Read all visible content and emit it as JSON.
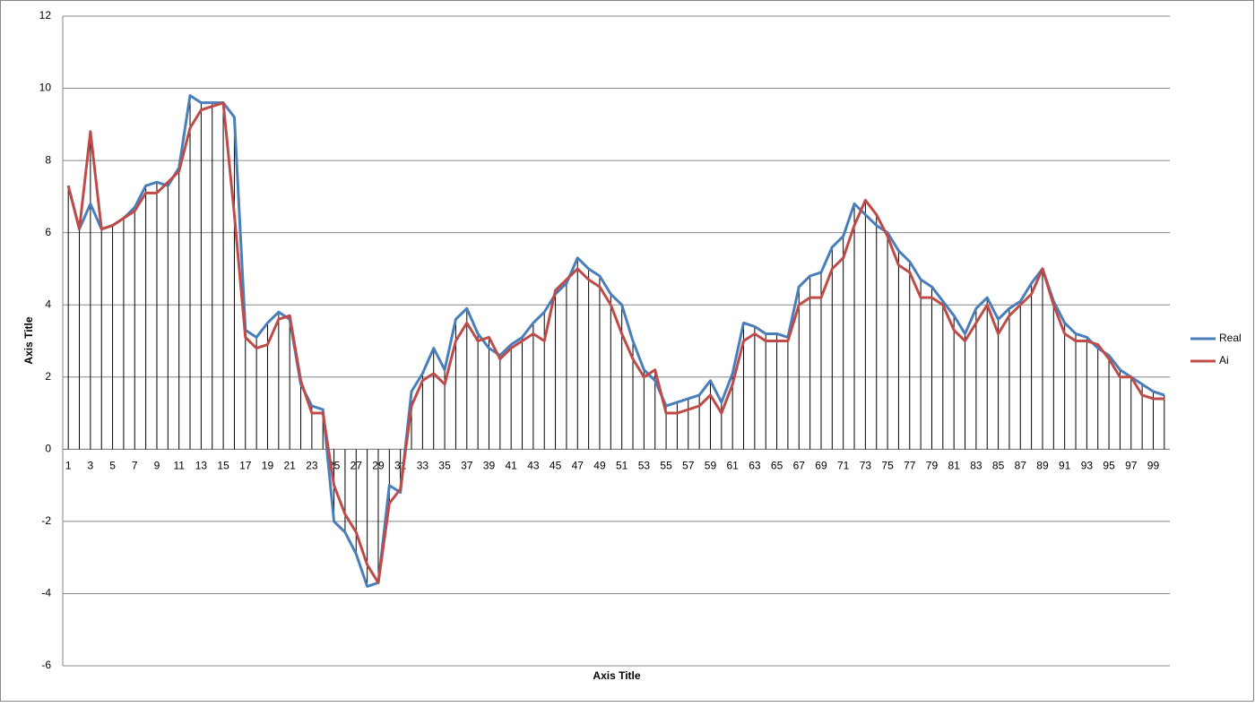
{
  "chart_data": {
    "type": "line",
    "x_label": "Axis Title",
    "y_label": "Axis Title",
    "categories": [
      "1",
      null,
      "3",
      null,
      "5",
      null,
      "7",
      null,
      "9",
      null,
      "11",
      null,
      "13",
      null,
      "15",
      null,
      "17",
      null,
      "19",
      null,
      "21",
      null,
      "23",
      null,
      "25",
      null,
      "27",
      null,
      "29",
      null,
      "31",
      null,
      "33",
      null,
      "35",
      null,
      "37",
      null,
      "39",
      null,
      "41",
      null,
      "43",
      null,
      "45",
      null,
      "47",
      null,
      "49",
      null,
      "51",
      null,
      "53",
      null,
      "55",
      null,
      "57",
      null,
      "59",
      null,
      "61",
      null,
      "63",
      null,
      "65",
      null,
      "67",
      null,
      "69",
      null,
      "71",
      null,
      "73",
      null,
      "75",
      null,
      "77",
      null,
      "79",
      null,
      "81",
      null,
      "83",
      null,
      "85",
      null,
      "87",
      null,
      "89",
      null,
      "91",
      null,
      "93",
      null,
      "95",
      null,
      "97",
      null,
      "99",
      null
    ],
    "series": [
      {
        "name": "Real",
        "color": "#4a7ebb",
        "values": [
          7.3,
          6.1,
          6.8,
          6.1,
          6.2,
          6.4,
          6.7,
          7.3,
          7.4,
          7.3,
          7.8,
          9.8,
          9.6,
          9.6,
          9.6,
          9.2,
          3.3,
          3.1,
          3.5,
          3.8,
          3.6,
          1.8,
          1.2,
          1.1,
          -2.0,
          -2.3,
          -2.9,
          -3.8,
          -3.7,
          -1.0,
          -1.2,
          1.6,
          2.1,
          2.8,
          2.2,
          3.6,
          3.9,
          3.2,
          2.8,
          2.6,
          2.9,
          3.1,
          3.5,
          3.8,
          4.3,
          4.6,
          5.3,
          5.0,
          4.8,
          4.3,
          4.0,
          3.0,
          2.2,
          1.9,
          1.2,
          1.3,
          1.4,
          1.5,
          1.9,
          1.3,
          2.1,
          3.5,
          3.4,
          3.2,
          3.2,
          3.1,
          4.5,
          4.8,
          4.9,
          5.6,
          5.9,
          6.8,
          6.5,
          6.2,
          6.0,
          5.5,
          5.2,
          4.7,
          4.5,
          4.1,
          3.7,
          3.2,
          3.9,
          4.2,
          3.6,
          3.9,
          4.1,
          4.6,
          5.0,
          4.1,
          3.5,
          3.2,
          3.1,
          2.8,
          2.6,
          2.2,
          2.0,
          1.8,
          1.6,
          1.5
        ]
      },
      {
        "name": "Ai",
        "color": "#be4b48",
        "values": [
          7.3,
          6.1,
          8.8,
          6.1,
          6.2,
          6.4,
          6.6,
          7.1,
          7.1,
          7.4,
          7.7,
          8.9,
          9.4,
          9.5,
          9.6,
          6.5,
          3.1,
          2.8,
          2.9,
          3.6,
          3.7,
          1.9,
          1.0,
          1.0,
          -1.0,
          -1.8,
          -2.3,
          -3.2,
          -3.7,
          -1.5,
          -1.1,
          1.2,
          1.9,
          2.1,
          1.8,
          3.0,
          3.5,
          3.0,
          3.1,
          2.5,
          2.8,
          3.0,
          3.2,
          3.0,
          4.4,
          4.7,
          5.0,
          4.7,
          4.5,
          4.0,
          3.2,
          2.5,
          2.0,
          2.2,
          1.0,
          1.0,
          1.1,
          1.2,
          1.5,
          1.0,
          1.8,
          3.0,
          3.2,
          3.0,
          3.0,
          3.0,
          4.0,
          4.2,
          4.2,
          5.0,
          5.3,
          6.2,
          6.9,
          6.5,
          5.9,
          5.1,
          4.9,
          4.2,
          4.2,
          4.0,
          3.3,
          3.0,
          3.5,
          4.0,
          3.2,
          3.7,
          4.0,
          4.3,
          5.0,
          4.0,
          3.2,
          3.0,
          3.0,
          2.9,
          2.5,
          2.0,
          2.0,
          1.5,
          1.4,
          1.4
        ]
      }
    ],
    "ylim": [
      -6,
      12
    ],
    "yticks": [
      -6,
      -4,
      -2,
      0,
      2,
      4,
      6,
      8,
      10,
      12
    ],
    "grid": true,
    "drop_lines": true,
    "legend": "right"
  }
}
